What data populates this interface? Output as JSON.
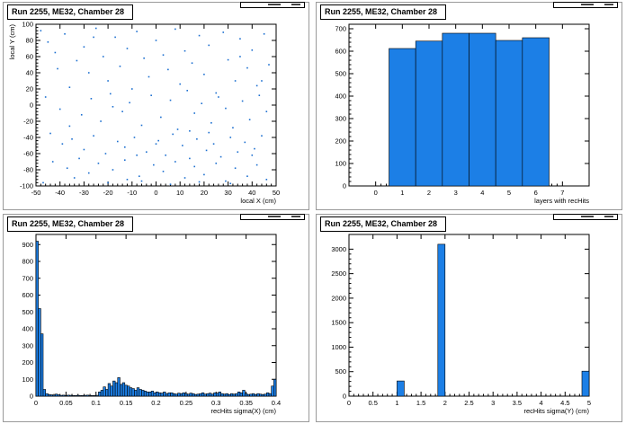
{
  "colors": {
    "bar": "#1c7fe6",
    "dot": "#1c6fd0",
    "frame": "#000000"
  },
  "chart_data": [
    {
      "type": "scatter",
      "title": "Run 2255, ME32, Chamber 28",
      "xlabel": "local X (cm)",
      "ylabel": "local Y (cm)",
      "xlim": [
        -50,
        50
      ],
      "ylim": [
        -100,
        100
      ],
      "xticks": [
        -50,
        -40,
        -30,
        -20,
        -10,
        0,
        10,
        20,
        30,
        40,
        50
      ],
      "yticks": [
        -100,
        -80,
        -60,
        -40,
        -20,
        0,
        20,
        40,
        60,
        80,
        100
      ],
      "points": [
        [
          -48,
          92
        ],
        [
          -45,
          78
        ],
        [
          -42,
          65
        ],
        [
          -38,
          88
        ],
        [
          -33,
          55
        ],
        [
          -30,
          72
        ],
        [
          -28,
          40
        ],
        [
          -25,
          95
        ],
        [
          -22,
          60
        ],
        [
          -20,
          30
        ],
        [
          -17,
          84
        ],
        [
          -15,
          48
        ],
        [
          -12,
          70
        ],
        [
          -10,
          20
        ],
        [
          -8,
          91
        ],
        [
          -5,
          58
        ],
        [
          -3,
          35
        ],
        [
          0,
          80
        ],
        [
          3,
          62
        ],
        [
          5,
          44
        ],
        [
          8,
          94
        ],
        [
          10,
          26
        ],
        [
          12,
          67
        ],
        [
          15,
          52
        ],
        [
          18,
          86
        ],
        [
          20,
          38
        ],
        [
          22,
          74
        ],
        [
          25,
          15
        ],
        [
          28,
          90
        ],
        [
          30,
          56
        ],
        [
          33,
          30
        ],
        [
          35,
          82
        ],
        [
          38,
          46
        ],
        [
          40,
          68
        ],
        [
          42,
          24
        ],
        [
          45,
          88
        ],
        [
          47,
          50
        ],
        [
          -46,
          10
        ],
        [
          -40,
          -5
        ],
        [
          -36,
          22
        ],
        [
          -31,
          -12
        ],
        [
          -27,
          8
        ],
        [
          -23,
          -20
        ],
        [
          -19,
          14
        ],
        [
          -14,
          -8
        ],
        [
          -11,
          3
        ],
        [
          -6,
          -25
        ],
        [
          -2,
          12
        ],
        [
          2,
          -15
        ],
        [
          6,
          6
        ],
        [
          9,
          -30
        ],
        [
          13,
          18
        ],
        [
          16,
          -10
        ],
        [
          19,
          2
        ],
        [
          23,
          -22
        ],
        [
          26,
          10
        ],
        [
          29,
          -4
        ],
        [
          32,
          -28
        ],
        [
          36,
          5
        ],
        [
          39,
          -18
        ],
        [
          43,
          12
        ],
        [
          46,
          -8
        ],
        [
          -44,
          -35
        ],
        [
          -39,
          -48
        ],
        [
          -35,
          -42
        ],
        [
          -30,
          -55
        ],
        [
          -26,
          -38
        ],
        [
          -21,
          -60
        ],
        [
          -16,
          -45
        ],
        [
          -13,
          -52
        ],
        [
          -9,
          -40
        ],
        [
          -4,
          -58
        ],
        [
          1,
          -44
        ],
        [
          4,
          -62
        ],
        [
          7,
          -36
        ],
        [
          11,
          -50
        ],
        [
          14,
          -66
        ],
        [
          17,
          -42
        ],
        [
          21,
          -56
        ],
        [
          24,
          -48
        ],
        [
          27,
          -64
        ],
        [
          31,
          -40
        ],
        [
          34,
          -58
        ],
        [
          37,
          -46
        ],
        [
          41,
          -54
        ],
        [
          44,
          -38
        ],
        [
          -43,
          -70
        ],
        [
          -37,
          -78
        ],
        [
          -32,
          -66
        ],
        [
          -28,
          -84
        ],
        [
          -24,
          -72
        ],
        [
          -18,
          -80
        ],
        [
          -13,
          -68
        ],
        [
          -7,
          -88
        ],
        [
          -1,
          -74
        ],
        [
          3,
          -82
        ],
        [
          8,
          -70
        ],
        [
          12,
          -90
        ],
        [
          16,
          -76
        ],
        [
          20,
          -86
        ],
        [
          25,
          -72
        ],
        [
          29,
          -94
        ],
        [
          33,
          -78
        ],
        [
          38,
          -88
        ],
        [
          42,
          -74
        ],
        [
          46,
          -92
        ],
        [
          -47,
          -96
        ],
        [
          -34,
          -90
        ],
        [
          -20,
          -96
        ],
        [
          -6,
          -94
        ],
        [
          6,
          -98
        ],
        [
          18,
          -95
        ],
        [
          31,
          -97
        ],
        [
          40,
          -62
        ],
        [
          -41,
          45
        ],
        [
          -18,
          -2
        ],
        [
          14,
          -32
        ],
        [
          35,
          60
        ],
        [
          -26,
          84
        ],
        [
          22,
          -34
        ],
        [
          -8,
          -62
        ],
        [
          -36,
          -26
        ],
        [
          44,
          30
        ],
        [
          0,
          -48
        ],
        [
          -12,
          -92
        ]
      ]
    },
    {
      "type": "bar",
      "title": "Run 2255, ME32, Chamber 28",
      "xlabel": "layers with recHits",
      "ylabel": "",
      "xlim": [
        -1,
        8
      ],
      "ylim": [
        0,
        720
      ],
      "xticks": [
        0,
        1,
        2,
        3,
        4,
        5,
        6,
        7
      ],
      "yticks": [
        0,
        100,
        200,
        300,
        400,
        500,
        600,
        700
      ],
      "x": [
        1,
        2,
        3,
        4,
        5,
        6
      ],
      "values": [
        612,
        645,
        680,
        680,
        648,
        660
      ]
    },
    {
      "type": "bar",
      "title": "Run 2255, ME32, Chamber 28",
      "xlabel": "recHits sigma(X) (cm)",
      "ylabel": "",
      "xlim": [
        0,
        0.4
      ],
      "ylim": [
        0,
        960
      ],
      "xticks": [
        0,
        0.05,
        0.1,
        0.15,
        0.2,
        0.25,
        0.3,
        0.35,
        0.4
      ],
      "xticklabels": [
        "0",
        "0.05",
        "0.1",
        "0.15",
        "0.2",
        "0.25",
        "0.3",
        "0.35",
        "0.4"
      ],
      "yticks": [
        0,
        100,
        200,
        300,
        400,
        500,
        600,
        700,
        800,
        900
      ],
      "bin_width": 0.004,
      "values": [
        920,
        520,
        370,
        40,
        15,
        10,
        8,
        6,
        12,
        8,
        5,
        6,
        4,
        6,
        5,
        4,
        4,
        5,
        4,
        4,
        5,
        6,
        4,
        4,
        4,
        5,
        25,
        35,
        55,
        40,
        75,
        60,
        90,
        80,
        110,
        70,
        80,
        65,
        60,
        50,
        45,
        35,
        50,
        40,
        35,
        30,
        25,
        25,
        30,
        20,
        25,
        20,
        18,
        25,
        15,
        20,
        20,
        15,
        12,
        18,
        15,
        20,
        15,
        12,
        18,
        15,
        10,
        12,
        15,
        20,
        12,
        15,
        18,
        12,
        20,
        18,
        25,
        15,
        12,
        15,
        10,
        15,
        12,
        15,
        25,
        20,
        35,
        15,
        10,
        12,
        15,
        10,
        15,
        12,
        10,
        12,
        20,
        15,
        60,
        100
      ]
    },
    {
      "type": "bar",
      "title": "Run 2255, ME32, Chamber 28",
      "xlabel": "recHits sigma(Y) (cm)",
      "ylabel": "",
      "xlim": [
        0,
        5
      ],
      "ylim": [
        0,
        3300
      ],
      "xticks": [
        0,
        0.5,
        1,
        1.5,
        2,
        2.5,
        3,
        3.5,
        4,
        4.5,
        5
      ],
      "xticklabels": [
        "0",
        "0.5",
        "1",
        "1.5",
        "2",
        "2.5",
        "3",
        "3.5",
        "4",
        "4.5",
        "5"
      ],
      "yticks": [
        0,
        500,
        1000,
        1500,
        2000,
        2500,
        3000
      ],
      "bins": [
        {
          "x0": 1.0,
          "x1": 1.15,
          "value": 310
        },
        {
          "x0": 1.85,
          "x1": 2.0,
          "value": 3100
        },
        {
          "x0": 4.85,
          "x1": 5.0,
          "value": 510
        }
      ]
    }
  ]
}
